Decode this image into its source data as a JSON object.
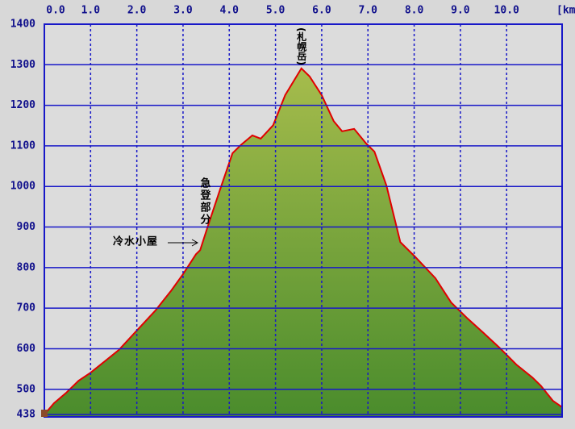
{
  "chart_data": {
    "type": "area",
    "x_label": "[km]",
    "x": [
      0,
      0.21,
      0.47,
      0.74,
      1.0,
      1.61,
      2.0,
      2.4,
      2.75,
      3.0,
      3.28,
      3.37,
      3.54,
      3.8,
      4.07,
      4.25,
      4.5,
      4.68,
      4.95,
      5.21,
      5.56,
      5.74,
      6.0,
      6.26,
      6.44,
      6.7,
      6.96,
      7.14,
      7.4,
      7.7,
      8.02,
      8.46,
      8.8,
      9.16,
      9.5,
      9.86,
      10.21,
      10.56,
      10.74,
      11.0,
      11.2
    ],
    "values": [
      438,
      466,
      491,
      521,
      541,
      597,
      645,
      694,
      744,
      784,
      833,
      843,
      903,
      992,
      1082,
      1102,
      1126,
      1118,
      1151,
      1225,
      1291,
      1271,
      1225,
      1161,
      1136,
      1142,
      1106,
      1086,
      1002,
      863,
      827,
      774,
      714,
      674,
      639,
      601,
      561,
      529,
      509,
      472,
      456
    ],
    "line_color": "#e00000",
    "fill_top_color": "#a6bc4c",
    "fill_bottom_color": "#4a8c2c",
    "xlim": [
      0,
      11.2
    ],
    "xticks": [
      {
        "value": 0,
        "label": "0.0"
      },
      {
        "value": 1,
        "label": "1.0"
      },
      {
        "value": 2,
        "label": "2.0"
      },
      {
        "value": 3,
        "label": "3.0"
      },
      {
        "value": 4,
        "label": "4.0"
      },
      {
        "value": 5,
        "label": "5.0"
      },
      {
        "value": 6,
        "label": "6.0"
      },
      {
        "value": 7,
        "label": "7.0"
      },
      {
        "value": 8,
        "label": "8.0"
      },
      {
        "value": 9,
        "label": "9.0"
      },
      {
        "value": 10,
        "label": "10.0"
      }
    ],
    "ylim": [
      438,
      1400
    ],
    "yticks": [
      438,
      500,
      600,
      700,
      800,
      900,
      1000,
      1100,
      1200,
      1300,
      1400
    ],
    "grid": true,
    "annotations": [
      "(札幌岳)",
      "急登部分",
      "冷水小屋"
    ]
  }
}
